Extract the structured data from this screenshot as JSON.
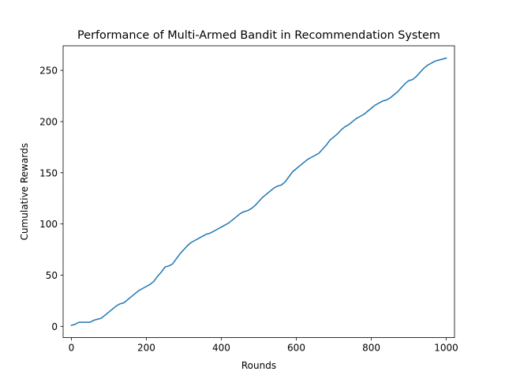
{
  "chart_data": {
    "type": "line",
    "title": "Performance of Multi-Armed Bandit in Recommendation System",
    "xlabel": "Rounds",
    "ylabel": "Cumulative Rewards",
    "xlim": [
      -22,
      1022
    ],
    "ylim": [
      -11,
      274
    ],
    "xticks": [
      0,
      200,
      400,
      600,
      800,
      1000
    ],
    "yticks": [
      0,
      50,
      100,
      150,
      200,
      250
    ],
    "xtick_labels": [
      "0",
      "200",
      "400",
      "600",
      "800",
      "1000"
    ],
    "ytick_labels": [
      "0",
      "50",
      "100",
      "150",
      "200",
      "250"
    ],
    "grid": false,
    "series": [
      {
        "color": "#1f77b4",
        "x": [
          0,
          10,
          20,
          30,
          40,
          50,
          60,
          70,
          80,
          90,
          100,
          110,
          120,
          130,
          140,
          150,
          160,
          170,
          180,
          190,
          200,
          210,
          220,
          230,
          240,
          250,
          260,
          270,
          280,
          290,
          300,
          310,
          320,
          330,
          340,
          350,
          360,
          370,
          380,
          390,
          400,
          410,
          420,
          430,
          440,
          450,
          460,
          470,
          480,
          490,
          500,
          510,
          520,
          530,
          540,
          550,
          560,
          570,
          580,
          590,
          600,
          610,
          620,
          630,
          640,
          650,
          660,
          670,
          680,
          690,
          700,
          710,
          720,
          730,
          740,
          750,
          760,
          770,
          780,
          790,
          800,
          810,
          820,
          830,
          840,
          850,
          860,
          870,
          880,
          890,
          900,
          910,
          920,
          930,
          940,
          950,
          960,
          970,
          980,
          990,
          1000
        ],
        "y": [
          1,
          2,
          4,
          4,
          4,
          4,
          6,
          7,
          8,
          11,
          14,
          17,
          20,
          22,
          23,
          26,
          29,
          32,
          35,
          37,
          39,
          41,
          44,
          49,
          53,
          58,
          59,
          61,
          66,
          71,
          75,
          79,
          82,
          84,
          86,
          88,
          90,
          91,
          93,
          95,
          97,
          99,
          101,
          104,
          107,
          110,
          112,
          113,
          115,
          118,
          122,
          126,
          129,
          132,
          135,
          137,
          138,
          141,
          146,
          151,
          154,
          157,
          160,
          163,
          165,
          167,
          169,
          173,
          177,
          182,
          185,
          188,
          192,
          195,
          197,
          200,
          203,
          205,
          207,
          210,
          213,
          216,
          218,
          220,
          221,
          223,
          226,
          229,
          233,
          237,
          240,
          241,
          244,
          248,
          252,
          255,
          257,
          259,
          260,
          261,
          262
        ]
      }
    ]
  }
}
